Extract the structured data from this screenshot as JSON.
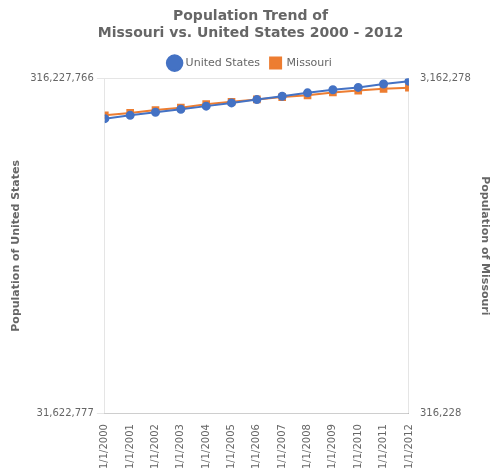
{
  "chart_data": {
    "type": "line",
    "title": "Population Trend of\nMissouri vs. United States 2000 - 2012",
    "categories": [
      "1/1/2000",
      "1/1/2001",
      "1/1/2002",
      "1/1/2003",
      "1/1/2004",
      "1/1/2005",
      "1/1/2006",
      "1/1/2007",
      "1/1/2008",
      "1/1/2009",
      "1/1/2010",
      "1/1/2011",
      "1/1/2012"
    ],
    "series": [
      {
        "name": "United States",
        "color": "#4472C4",
        "marker": "circle",
        "values": [
          282162411,
          284968955,
          287625193,
          290107933,
          292805298,
          295516599,
          298379912,
          301231207,
          304093966,
          306771529,
          308745538,
          311591917,
          313914040
        ]
      },
      {
        "name": "Missouri",
        "color": "#ED7D31",
        "marker": "square",
        "axis": "y2",
        "values": [
          2850000,
          2870000,
          2895000,
          2915000,
          2945000,
          2965000,
          2985000,
          3005000,
          3020000,
          3045000,
          3060000,
          3075000,
          3085000
        ]
      }
    ],
    "ylabel": "Population of United States",
    "y2label": "Population of Missouri",
    "ylim": [
      31622777,
      316227766
    ],
    "yticks": [
      {
        "value": 31622777,
        "label": "31,622,777"
      },
      {
        "value": 316227766,
        "label": "316,227,766"
      }
    ],
    "y2lim": [
      316228,
      3162278
    ],
    "y2ticks": [
      {
        "value": 316228,
        "label": "316,228"
      },
      {
        "value": 3162278,
        "label": "3,162,278"
      }
    ],
    "grid": true,
    "legend": "top"
  }
}
